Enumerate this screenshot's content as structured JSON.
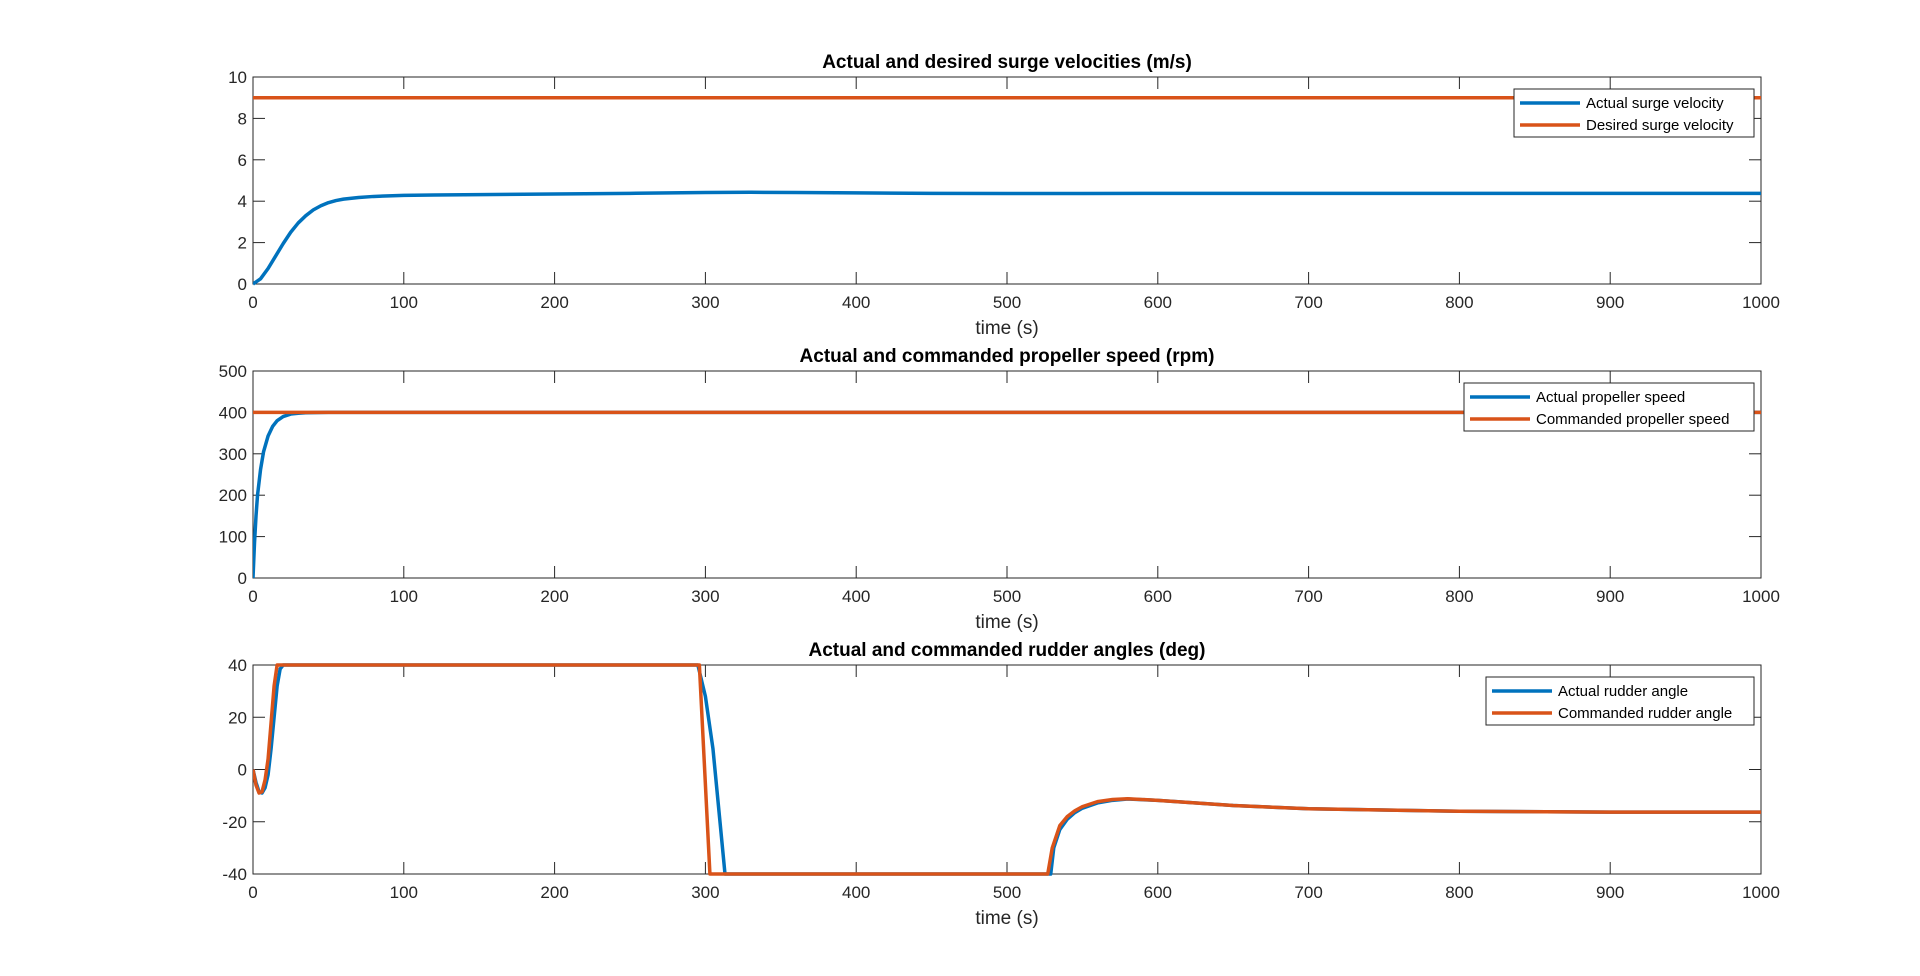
{
  "figure": {
    "background": "#ffffff"
  },
  "chart_data": [
    {
      "type": "line",
      "title": "Actual and desired surge velocities (m/s)",
      "xlabel": "time (s)",
      "ylabel": "",
      "xlim": [
        0,
        1000
      ],
      "ylim": [
        0,
        10
      ],
      "xticks": [
        0,
        100,
        200,
        300,
        400,
        500,
        600,
        700,
        800,
        900,
        1000
      ],
      "yticks": [
        0,
        2,
        4,
        6,
        8,
        10
      ],
      "grid": false,
      "legend_position": "top-right",
      "series": [
        {
          "name": "Actual surge velocity",
          "color": "#0072BD",
          "x": [
            0,
            5,
            10,
            15,
            20,
            25,
            30,
            35,
            40,
            45,
            50,
            55,
            60,
            70,
            80,
            90,
            100,
            120,
            150,
            200,
            250,
            300,
            330,
            360,
            400,
            450,
            500,
            550,
            600,
            700,
            800,
            900,
            1000
          ],
          "y": [
            0,
            0.25,
            0.75,
            1.35,
            1.95,
            2.5,
            2.95,
            3.3,
            3.58,
            3.78,
            3.93,
            4.03,
            4.1,
            4.18,
            4.23,
            4.26,
            4.28,
            4.3,
            4.32,
            4.35,
            4.38,
            4.42,
            4.43,
            4.42,
            4.4,
            4.38,
            4.37,
            4.37,
            4.38,
            4.38,
            4.38,
            4.38,
            4.38
          ]
        },
        {
          "name": "Desired surge velocity",
          "color": "#D95319",
          "x": [
            0,
            1000
          ],
          "y": [
            9,
            9
          ]
        }
      ]
    },
    {
      "type": "line",
      "title": "Actual and commanded propeller speed (rpm)",
      "xlabel": "time (s)",
      "ylabel": "",
      "xlim": [
        0,
        1000
      ],
      "ylim": [
        0,
        500
      ],
      "xticks": [
        0,
        100,
        200,
        300,
        400,
        500,
        600,
        700,
        800,
        900,
        1000
      ],
      "yticks": [
        0,
        100,
        200,
        300,
        400,
        500
      ],
      "grid": false,
      "legend_position": "top-right",
      "series": [
        {
          "name": "Actual propeller speed",
          "color": "#0072BD",
          "x": [
            0,
            1,
            2,
            3,
            5,
            7,
            10,
            13,
            16,
            20,
            25,
            30,
            35,
            40,
            50,
            60,
            70,
            100,
            1000
          ],
          "y": [
            0,
            85,
            150,
            200,
            262,
            305,
            343,
            366,
            380,
            390,
            396,
            398,
            399,
            399.5,
            400,
            400,
            400,
            400,
            400
          ]
        },
        {
          "name": "Commanded propeller speed",
          "color": "#D95319",
          "x": [
            0,
            1000
          ],
          "y": [
            400,
            400
          ]
        }
      ]
    },
    {
      "type": "line",
      "title": "Actual and commanded rudder angles (deg)",
      "xlabel": "time (s)",
      "ylabel": "",
      "xlim": [
        0,
        1000
      ],
      "ylim": [
        -40,
        40
      ],
      "xticks": [
        0,
        100,
        200,
        300,
        400,
        500,
        600,
        700,
        800,
        900,
        1000
      ],
      "yticks": [
        -40,
        -20,
        0,
        20,
        40
      ],
      "grid": false,
      "legend_position": "top-right",
      "series": [
        {
          "name": "Actual rudder angle",
          "color": "#0072BD",
          "x": [
            0,
            2,
            4,
            6,
            8,
            10,
            12,
            14,
            16,
            18,
            20,
            295,
            300,
            305,
            310,
            313,
            500,
            529,
            531,
            535,
            540,
            545,
            550,
            560,
            570,
            580,
            600,
            650,
            700,
            800,
            900,
            1000
          ],
          "y": [
            0,
            -5,
            -8.5,
            -9,
            -7,
            -2,
            8,
            20,
            32,
            38.5,
            40,
            40,
            28,
            8,
            -22,
            -40,
            -40,
            -40,
            -30,
            -23,
            -19,
            -16.5,
            -14.8,
            -12.8,
            -11.8,
            -11.3,
            -11.8,
            -13.8,
            -15,
            -16,
            -16.3,
            -16.3
          ]
        },
        {
          "name": "Commanded rudder angle",
          "color": "#D95319",
          "x": [
            0,
            2,
            4,
            6,
            8,
            10,
            12,
            14,
            16,
            18,
            296,
            303,
            527,
            530,
            535,
            540,
            545,
            550,
            560,
            570,
            580,
            600,
            650,
            700,
            800,
            900,
            1000
          ],
          "y": [
            0,
            -6,
            -9,
            -8.5,
            -4,
            4,
            18,
            32,
            40,
            40,
            40,
            -40,
            -40,
            -30,
            -21.5,
            -18,
            -15.8,
            -14.2,
            -12.3,
            -11.5,
            -11.2,
            -11.8,
            -13.8,
            -15,
            -16,
            -16.3,
            -16.3
          ]
        }
      ]
    }
  ]
}
